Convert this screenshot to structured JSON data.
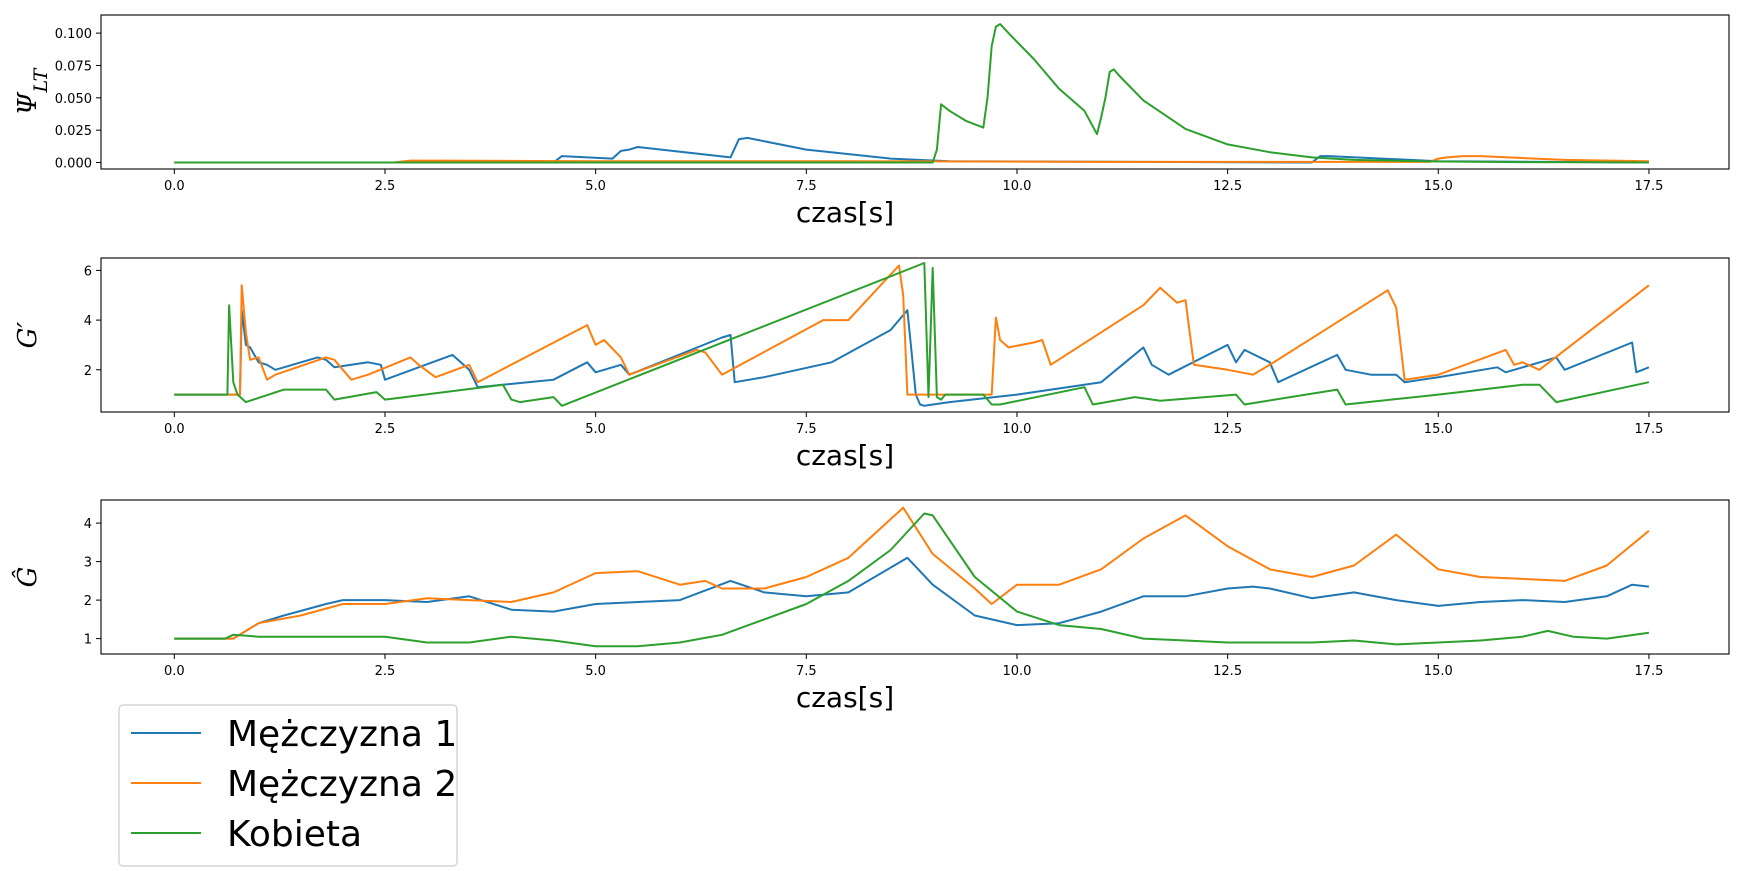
{
  "chart_data": [
    {
      "type": "line",
      "ylabel": "Ψ_LT",
      "xlabel": "czas[s]",
      "xlim": [
        -0.87,
        18.45
      ],
      "ylim": [
        -0.005,
        0.114
      ],
      "xticks": [
        "0.0",
        "2.5",
        "5.0",
        "7.5",
        "10.0",
        "12.5",
        "15.0",
        "17.5"
      ],
      "yticks": [
        "0.000",
        "0.025",
        "0.050",
        "0.075",
        "0.100"
      ],
      "series": [
        {
          "name": "Mężczyzna 1",
          "x": [
            0,
            4.5,
            4.6,
            5.2,
            5.3,
            5.4,
            5.5,
            6.6,
            6.7,
            6.8,
            7.5,
            8.5,
            9.2,
            13.5,
            13.6,
            13.7,
            15.0,
            17.5
          ],
          "y": [
            0,
            0,
            0.005,
            0.003,
            0.009,
            0.01,
            0.012,
            0.004,
            0.018,
            0.019,
            0.01,
            0.003,
            0.001,
            0,
            0.005,
            0.005,
            0.001,
            0
          ]
        },
        {
          "name": "Mężczyzna 2",
          "x": [
            0,
            2.6,
            2.8,
            3.2,
            5.0,
            8.0,
            11.0,
            14.9,
            15.0,
            15.1,
            15.3,
            15.5,
            16.5,
            17.5
          ],
          "y": [
            0,
            0,
            0.0015,
            0.0015,
            0.001,
            0.001,
            0.0005,
            0.0005,
            0.003,
            0.004,
            0.005,
            0.005,
            0.002,
            0.001
          ]
        },
        {
          "name": "Kobieta",
          "x": [
            0,
            9.0,
            9.05,
            9.1,
            9.2,
            9.4,
            9.6,
            9.65,
            9.7,
            9.75,
            9.8,
            9.9,
            10.2,
            10.5,
            10.8,
            10.95,
            11.0,
            11.05,
            11.1,
            11.15,
            11.2,
            11.5,
            12.0,
            12.5,
            13.0,
            13.5,
            14.0,
            15.0,
            16.0,
            17.5
          ],
          "y": [
            0,
            0,
            0.01,
            0.045,
            0.04,
            0.032,
            0.027,
            0.05,
            0.09,
            0.105,
            0.107,
            0.1,
            0.08,
            0.057,
            0.04,
            0.022,
            0.035,
            0.05,
            0.07,
            0.072,
            0.068,
            0.048,
            0.026,
            0.014,
            0.008,
            0.004,
            0.002,
            0.0008,
            0.0003,
            0.0001
          ]
        }
      ]
    },
    {
      "type": "line",
      "ylabel": "G′",
      "xlabel": "czas[s]",
      "xlim": [
        -0.87,
        18.45
      ],
      "ylim": [
        0.3,
        6.5
      ],
      "xticks": [
        "0.0",
        "2.5",
        "5.0",
        "7.5",
        "10.0",
        "12.5",
        "15.0",
        "17.5"
      ],
      "yticks": [
        "2",
        "4",
        "6"
      ],
      "series": [
        {
          "name": "Mężczyzna 1",
          "x": [
            0,
            0.78,
            0.8,
            0.85,
            0.9,
            1.0,
            1.1,
            1.2,
            1.3,
            1.7,
            1.8,
            1.9,
            2.3,
            2.45,
            2.5,
            3.3,
            3.4,
            3.5,
            3.6,
            4.5,
            4.9,
            5.0,
            5.1,
            5.3,
            5.4,
            6.5,
            6.6,
            6.65,
            7.0,
            7.8,
            8.5,
            8.7,
            8.8,
            8.85,
            8.9,
            9.2,
            10.0,
            11.0,
            11.5,
            11.6,
            11.8,
            12.5,
            12.6,
            12.7,
            13.0,
            13.1,
            13.8,
            13.9,
            14.2,
            14.5,
            14.6,
            15.0,
            15.7,
            15.8,
            16.4,
            16.5,
            17.3,
            17.35,
            17.5
          ],
          "y": [
            1,
            1,
            4.4,
            3.0,
            2.9,
            2.3,
            2.2,
            2.0,
            2.1,
            2.5,
            2.4,
            2.1,
            2.3,
            2.2,
            1.6,
            2.6,
            2.3,
            2.0,
            1.3,
            1.6,
            2.3,
            1.9,
            2.0,
            2.2,
            1.8,
            3.3,
            3.4,
            1.5,
            1.7,
            2.3,
            3.6,
            4.4,
            1.0,
            0.6,
            0.55,
            0.7,
            1.0,
            1.5,
            2.9,
            2.2,
            1.8,
            3.0,
            2.3,
            2.8,
            2.3,
            1.5,
            2.6,
            2.0,
            1.8,
            1.8,
            1.5,
            1.7,
            2.1,
            1.9,
            2.5,
            2.0,
            3.1,
            1.9,
            2.1
          ]
        },
        {
          "name": "Mężczyzna 2",
          "x": [
            0,
            0.78,
            0.8,
            0.85,
            0.9,
            1.0,
            1.1,
            1.2,
            1.8,
            1.9,
            2.1,
            2.3,
            2.8,
            2.9,
            3.1,
            3.5,
            3.6,
            4.9,
            5.0,
            5.1,
            5.3,
            5.4,
            6.2,
            6.3,
            6.5,
            7.7,
            8.0,
            8.6,
            8.65,
            8.7,
            9.0,
            9.7,
            9.75,
            9.8,
            9.9,
            10.2,
            10.3,
            10.4,
            11.5,
            11.7,
            11.9,
            12.0,
            12.1,
            12.5,
            12.8,
            13.0,
            14.4,
            14.5,
            14.6,
            15.0,
            15.8,
            15.9,
            16.0,
            16.2,
            17.5
          ],
          "y": [
            1,
            1,
            5.4,
            3.5,
            2.4,
            2.5,
            1.6,
            1.8,
            2.5,
            2.4,
            1.6,
            1.8,
            2.5,
            2.2,
            1.7,
            2.2,
            1.5,
            3.8,
            3.0,
            3.2,
            2.5,
            1.8,
            2.8,
            2.7,
            1.8,
            4.0,
            4.0,
            6.2,
            5.0,
            1.0,
            1.0,
            1.0,
            4.1,
            3.2,
            2.9,
            3.1,
            3.2,
            2.2,
            4.6,
            5.3,
            4.7,
            4.8,
            2.2,
            2.0,
            1.8,
            2.2,
            5.2,
            4.5,
            1.6,
            1.8,
            2.8,
            2.2,
            2.3,
            2.0,
            5.4
          ]
        },
        {
          "name": "Kobieta",
          "x": [
            0,
            0.63,
            0.65,
            0.7,
            0.75,
            0.85,
            1.3,
            1.8,
            1.9,
            2.4,
            2.5,
            3.9,
            4.0,
            4.1,
            4.5,
            4.6,
            8.9,
            8.95,
            9.0,
            9.05,
            9.1,
            9.15,
            9.6,
            9.7,
            9.8,
            10.8,
            10.9,
            11.4,
            11.7,
            12.6,
            12.7,
            13.8,
            13.9,
            15.0,
            16.0,
            16.2,
            16.4,
            17.5
          ],
          "y": [
            1,
            1,
            4.6,
            1.5,
            1.0,
            0.7,
            1.2,
            1.2,
            0.8,
            1.1,
            0.8,
            1.4,
            0.8,
            0.7,
            0.9,
            0.55,
            6.3,
            0.9,
            6.1,
            0.9,
            0.8,
            1.0,
            1.0,
            0.6,
            0.6,
            1.3,
            0.6,
            0.9,
            0.75,
            1.0,
            0.6,
            1.2,
            0.6,
            1.0,
            1.4,
            1.4,
            0.7,
            1.5
          ]
        }
      ]
    },
    {
      "type": "line",
      "ylabel": "Ĝ",
      "xlabel": "czas[s]",
      "xlim": [
        -0.87,
        18.45
      ],
      "ylim": [
        0.6,
        4.6
      ],
      "xticks": [
        "0.0",
        "2.5",
        "5.0",
        "7.5",
        "10.0",
        "12.5",
        "15.0",
        "17.5"
      ],
      "yticks": [
        "1",
        "2",
        "3",
        "4"
      ],
      "series": [
        {
          "name": "Mężczyzna 1",
          "x": [
            0,
            0.7,
            1.0,
            1.3,
            1.8,
            2.0,
            2.5,
            3.0,
            3.5,
            4.0,
            4.5,
            5.0,
            5.5,
            6.0,
            6.6,
            7.0,
            7.5,
            8.0,
            8.7,
            9.0,
            9.5,
            10.0,
            10.5,
            11.0,
            11.5,
            12.0,
            12.5,
            12.8,
            13.0,
            13.5,
            14.0,
            14.5,
            15.0,
            15.5,
            16.0,
            16.5,
            17.0,
            17.3,
            17.5
          ],
          "y": [
            1,
            1,
            1.4,
            1.6,
            1.9,
            2.0,
            2.0,
            1.95,
            2.1,
            1.75,
            1.7,
            1.9,
            1.95,
            2.0,
            2.5,
            2.2,
            2.1,
            2.2,
            3.1,
            2.4,
            1.6,
            1.35,
            1.4,
            1.7,
            2.1,
            2.1,
            2.3,
            2.35,
            2.3,
            2.05,
            2.2,
            2.0,
            1.85,
            1.95,
            2.0,
            1.95,
            2.1,
            2.4,
            2.35
          ]
        },
        {
          "name": "Mężczyzna 2",
          "x": [
            0,
            0.7,
            1.0,
            1.5,
            2.0,
            2.5,
            3.0,
            3.5,
            4.0,
            4.5,
            5.0,
            5.5,
            6.0,
            6.3,
            6.5,
            7.0,
            7.5,
            8.0,
            8.65,
            9.0,
            9.5,
            9.7,
            10.0,
            10.5,
            11.0,
            11.5,
            12.0,
            12.5,
            13.0,
            13.5,
            14.0,
            14.5,
            15.0,
            15.5,
            16.0,
            16.5,
            17.0,
            17.5
          ],
          "y": [
            1,
            1,
            1.4,
            1.6,
            1.9,
            1.9,
            2.05,
            2.0,
            1.95,
            2.2,
            2.7,
            2.75,
            2.4,
            2.5,
            2.3,
            2.3,
            2.6,
            3.1,
            4.4,
            3.2,
            2.3,
            1.9,
            2.4,
            2.4,
            2.8,
            3.6,
            4.2,
            3.4,
            2.8,
            2.6,
            2.9,
            3.7,
            2.8,
            2.6,
            2.55,
            2.5,
            2.9,
            3.8
          ]
        },
        {
          "name": "Kobieta",
          "x": [
            0,
            0.6,
            0.7,
            1.0,
            1.5,
            2.0,
            2.5,
            3.0,
            3.5,
            4.0,
            4.5,
            5.0,
            5.5,
            6.0,
            6.5,
            7.0,
            7.5,
            8.0,
            8.5,
            8.9,
            9.0,
            9.5,
            10.0,
            10.5,
            11.0,
            11.5,
            12.0,
            12.5,
            13.0,
            13.5,
            14.0,
            14.5,
            15.0,
            15.5,
            16.0,
            16.3,
            16.6,
            17.0,
            17.5
          ],
          "y": [
            1,
            1,
            1.1,
            1.05,
            1.05,
            1.05,
            1.05,
            0.9,
            0.9,
            1.05,
            0.95,
            0.8,
            0.8,
            0.9,
            1.1,
            1.5,
            1.9,
            2.5,
            3.3,
            4.25,
            4.2,
            2.6,
            1.7,
            1.35,
            1.25,
            1.0,
            0.95,
            0.9,
            0.9,
            0.9,
            0.95,
            0.85,
            0.9,
            0.95,
            1.05,
            1.2,
            1.05,
            1.0,
            1.15
          ]
        }
      ]
    }
  ],
  "legend": {
    "entries": [
      "Mężczyzna 1",
      "Mężczyzna 2",
      "Kobieta"
    ],
    "colors": [
      "#1f77b4",
      "#ff7f0e",
      "#2ca02c"
    ]
  }
}
